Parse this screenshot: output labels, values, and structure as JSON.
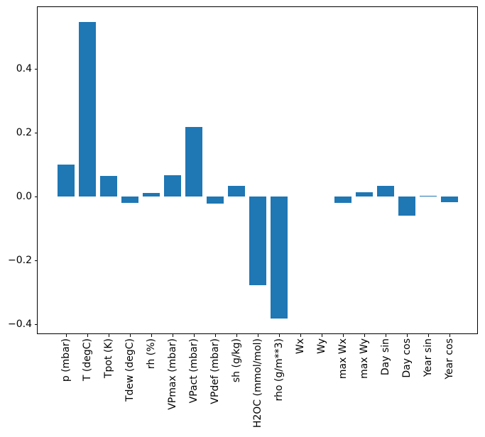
{
  "chart_data": {
    "type": "bar",
    "title": "",
    "xlabel": "",
    "ylabel": "",
    "categories": [
      "p (mbar)",
      "T (degC)",
      "Tpot (K)",
      "Tdew (degC)",
      "rh (%)",
      "VPmax (mbar)",
      "VPact (mbar)",
      "VPdef (mbar)",
      "sh (g/kg)",
      "H2OC (mmol/mol)",
      "rho (g/m**3)",
      "Wx",
      "Wy",
      "max Wx",
      "max Wy",
      "Day sin",
      "Day cos",
      "Year sin",
      "Year cos"
    ],
    "values": [
      0.1,
      0.548,
      0.065,
      -0.02,
      0.013,
      0.068,
      0.219,
      -0.021,
      0.035,
      -0.276,
      -0.381,
      0.0,
      0.0,
      -0.02,
      0.015,
      0.034,
      -0.06,
      0.004,
      -0.017
    ],
    "ylim": [
      -0.428,
      0.594
    ],
    "yticks": [
      {
        "value": 0.4,
        "label": "0.4"
      },
      {
        "value": 0.2,
        "label": "0.2"
      },
      {
        "value": 0.0,
        "label": "0.0"
      },
      {
        "value": -0.2,
        "label": "−0.2"
      },
      {
        "value": -0.4,
        "label": "−0.4"
      }
    ],
    "grid": false,
    "legend": null,
    "colors": {
      "bar": "#1f77b4",
      "spine": "#000000",
      "tick": "#000000",
      "text": "#000000",
      "background": "#ffffff"
    }
  }
}
